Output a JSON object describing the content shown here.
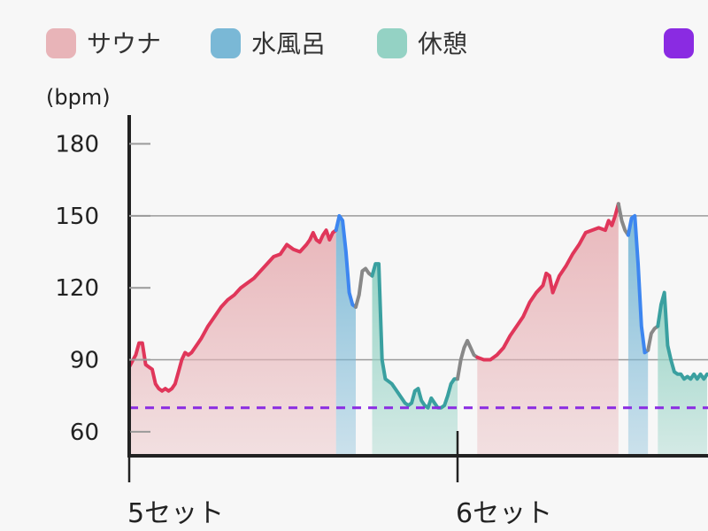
{
  "chart_data": {
    "type": "area",
    "title": "",
    "unit_label": "(bpm)",
    "xlabel": "",
    "ylabel": "",
    "y_ticks": [
      60,
      90,
      120,
      150,
      180
    ],
    "ylim": [
      50,
      192
    ],
    "gridlines": [
      90,
      150
    ],
    "categories": [
      {
        "label": "5セット",
        "x": 0
      },
      {
        "label": "6セット",
        "x": 100
      }
    ],
    "xlim": [
      0,
      176
    ],
    "legend": [
      {
        "name": "サウナ",
        "color": "#e8b4b8"
      },
      {
        "name": "水風呂",
        "color": "#7ab8d6"
      },
      {
        "name": "休憩",
        "color": "#94d2c4"
      },
      {
        "name": "",
        "color": "#8a2be2"
      }
    ],
    "reference_line": {
      "value": 70,
      "color": "#8a2be2"
    },
    "segments": [
      {
        "phase": "サウナ",
        "color": "#e0365a",
        "fill": "#e8b4b8",
        "points": [
          [
            0,
            87
          ],
          [
            2,
            92
          ],
          [
            3,
            97
          ],
          [
            4,
            97
          ],
          [
            5,
            88
          ],
          [
            6,
            87
          ],
          [
            7,
            86
          ],
          [
            8,
            80
          ],
          [
            9,
            78
          ],
          [
            10,
            77
          ],
          [
            11,
            78
          ],
          [
            12,
            77
          ],
          [
            13,
            78
          ],
          [
            14,
            80
          ],
          [
            15,
            85
          ],
          [
            16,
            90
          ],
          [
            17,
            93
          ],
          [
            18,
            92
          ],
          [
            19,
            93
          ],
          [
            20,
            95
          ],
          [
            21,
            97
          ],
          [
            22,
            99
          ],
          [
            24,
            104
          ],
          [
            26,
            108
          ],
          [
            28,
            112
          ],
          [
            30,
            115
          ],
          [
            32,
            117
          ],
          [
            34,
            120
          ],
          [
            36,
            122
          ],
          [
            38,
            124
          ],
          [
            40,
            127
          ],
          [
            42,
            130
          ],
          [
            44,
            133
          ],
          [
            46,
            134
          ],
          [
            48,
            138
          ],
          [
            50,
            136
          ],
          [
            52,
            135
          ],
          [
            54,
            138
          ],
          [
            55,
            140
          ],
          [
            56,
            143
          ],
          [
            57,
            140
          ],
          [
            58,
            139
          ],
          [
            59,
            142
          ],
          [
            60,
            144
          ],
          [
            61,
            140
          ],
          [
            62,
            143
          ],
          [
            63,
            144
          ]
        ]
      },
      {
        "phase": "水風呂",
        "color": "#3d86f0",
        "fill": "#7ab8d6",
        "points": [
          [
            63,
            144
          ],
          [
            64,
            150
          ],
          [
            65,
            148
          ],
          [
            66,
            135
          ],
          [
            67,
            118
          ],
          [
            68,
            113
          ],
          [
            69,
            112
          ]
        ]
      },
      {
        "phase": "",
        "color": "#888888",
        "fill": "none",
        "points": [
          [
            69,
            112
          ],
          [
            70,
            117
          ],
          [
            71,
            127
          ],
          [
            72,
            128
          ],
          [
            73,
            126
          ],
          [
            74,
            125
          ]
        ]
      },
      {
        "phase": "休憩",
        "color": "#3aa0a0",
        "fill": "#94d2c4",
        "points": [
          [
            74,
            125
          ],
          [
            75,
            130
          ],
          [
            76,
            130
          ],
          [
            77,
            90
          ],
          [
            78,
            82
          ],
          [
            80,
            80
          ],
          [
            82,
            76
          ],
          [
            84,
            72
          ],
          [
            85,
            71
          ],
          [
            86,
            72
          ],
          [
            87,
            77
          ],
          [
            88,
            78
          ],
          [
            89,
            73
          ],
          [
            90,
            71
          ],
          [
            91,
            70
          ],
          [
            92,
            74
          ],
          [
            93,
            72
          ],
          [
            94,
            70
          ],
          [
            95,
            70
          ],
          [
            96,
            71
          ],
          [
            97,
            75
          ],
          [
            98,
            80
          ],
          [
            99,
            82
          ],
          [
            100,
            82
          ]
        ]
      },
      {
        "phase": "",
        "color": "#888888",
        "fill": "none",
        "points": [
          [
            100,
            82
          ],
          [
            101,
            90
          ],
          [
            102,
            95
          ],
          [
            103,
            98
          ],
          [
            104,
            95
          ],
          [
            105,
            92
          ],
          [
            106,
            91
          ]
        ]
      },
      {
        "phase": "サウナ",
        "color": "#e0365a",
        "fill": "#e8b4b8",
        "points": [
          [
            106,
            91
          ],
          [
            108,
            90
          ],
          [
            110,
            90
          ],
          [
            112,
            92
          ],
          [
            114,
            95
          ],
          [
            116,
            100
          ],
          [
            118,
            104
          ],
          [
            120,
            108
          ],
          [
            122,
            114
          ],
          [
            124,
            118
          ],
          [
            126,
            121
          ],
          [
            127,
            126
          ],
          [
            128,
            125
          ],
          [
            129,
            118
          ],
          [
            131,
            125
          ],
          [
            133,
            129
          ],
          [
            135,
            134
          ],
          [
            137,
            138
          ],
          [
            139,
            143
          ],
          [
            141,
            144
          ],
          [
            143,
            145
          ],
          [
            145,
            144
          ],
          [
            146,
            148
          ],
          [
            147,
            146
          ],
          [
            148,
            150
          ],
          [
            149,
            155
          ]
        ]
      },
      {
        "phase": "",
        "color": "#888888",
        "fill": "none",
        "points": [
          [
            149,
            155
          ],
          [
            150,
            148
          ],
          [
            151,
            144
          ],
          [
            152,
            142
          ]
        ]
      },
      {
        "phase": "水風呂",
        "color": "#3d86f0",
        "fill": "#7ab8d6",
        "points": [
          [
            152,
            142
          ],
          [
            153,
            149
          ],
          [
            154,
            150
          ],
          [
            155,
            130
          ],
          [
            156,
            104
          ],
          [
            157,
            93
          ],
          [
            158,
            94
          ]
        ]
      },
      {
        "phase": "",
        "color": "#888888",
        "fill": "none",
        "points": [
          [
            158,
            94
          ],
          [
            159,
            101
          ],
          [
            160,
            103
          ],
          [
            161,
            104
          ]
        ]
      },
      {
        "phase": "休憩",
        "color": "#3aa0a0",
        "fill": "#94d2c4",
        "points": [
          [
            161,
            104
          ],
          [
            162,
            113
          ],
          [
            163,
            118
          ],
          [
            164,
            96
          ],
          [
            165,
            90
          ],
          [
            166,
            85
          ],
          [
            167,
            84
          ],
          [
            168,
            84
          ],
          [
            169,
            82
          ],
          [
            170,
            83
          ],
          [
            171,
            82
          ],
          [
            172,
            84
          ],
          [
            173,
            82
          ],
          [
            174,
            84
          ],
          [
            175,
            82
          ],
          [
            176,
            84
          ]
        ]
      }
    ]
  }
}
